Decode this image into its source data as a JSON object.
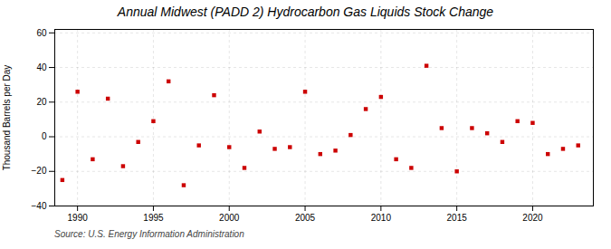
{
  "chart_data": {
    "type": "scatter",
    "title": "Annual Midwest (PADD 2) Hydrocarbon Gas Liquids Stock Change",
    "ylabel": "Thousand Barrels per Day",
    "annotations": [
      "Source: U.S. Energy Information Administration"
    ],
    "x": [
      1989,
      1990,
      1991,
      1992,
      1993,
      1994,
      1995,
      1996,
      1997,
      1998,
      1999,
      2000,
      2001,
      2002,
      2003,
      2004,
      2005,
      2006,
      2007,
      2008,
      2009,
      2010,
      2011,
      2012,
      2013,
      2014,
      2015,
      2016,
      2017,
      2018,
      2019,
      2020,
      2021,
      2022,
      2023
    ],
    "values": [
      -25,
      26,
      -13,
      22,
      -17,
      -3,
      9,
      32,
      -28,
      -5,
      24,
      -6,
      -18,
      3,
      -7,
      -6,
      26,
      -10,
      -8,
      1,
      16,
      23,
      -13,
      -18,
      41,
      5,
      -20,
      5,
      2,
      -3,
      9,
      8,
      -10,
      -7,
      -5
    ],
    "color": "#cc0000",
    "marker": "square",
    "xlim": [
      1988.5,
      2024
    ],
    "ylim": [
      -40,
      62
    ],
    "xticks": [
      1990,
      1995,
      2000,
      2005,
      2010,
      2015,
      2020
    ],
    "yticks": [
      -40,
      -20,
      0,
      20,
      40,
      60
    ],
    "grid": true
  }
}
